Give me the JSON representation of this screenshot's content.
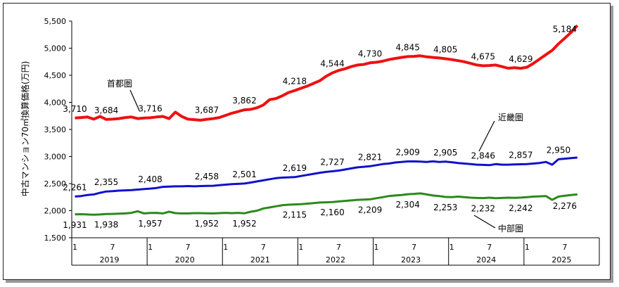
{
  "chart_data": {
    "type": "line",
    "ylabel": "中古マンション70㎡換算価格(万円)",
    "ylim": [
      1500,
      5500
    ],
    "yticks": [
      1500,
      2000,
      2500,
      3000,
      3500,
      4000,
      4500,
      5000,
      5500
    ],
    "ytick_labels": [
      "1,500",
      "2,000",
      "2,500",
      "3,000",
      "3,500",
      "4,000",
      "4,500",
      "5,000",
      "5,500"
    ],
    "x_month_ticks": [
      "1",
      "7",
      "1",
      "7",
      "1",
      "7",
      "1",
      "7",
      "1",
      "7",
      "1",
      "7",
      "1",
      "7"
    ],
    "x_years": [
      "2019",
      "2020",
      "2021",
      "2022",
      "2023",
      "2024",
      "2025"
    ],
    "grid": false,
    "legend": "labels placed next to series",
    "series": [
      {
        "name": "首都圏",
        "color": "#ee1111",
        "values": [
          3710,
          3720,
          3730,
          3690,
          3740,
          3684,
          3690,
          3700,
          3720,
          3730,
          3700,
          3710,
          3716,
          3730,
          3740,
          3700,
          3820,
          3740,
          3690,
          3680,
          3670,
          3687,
          3700,
          3720,
          3760,
          3800,
          3830,
          3862,
          3870,
          3900,
          3950,
          4050,
          4070,
          4120,
          4180,
          4218,
          4260,
          4300,
          4350,
          4400,
          4480,
          4544,
          4590,
          4620,
          4660,
          4690,
          4700,
          4730,
          4740,
          4760,
          4790,
          4810,
          4830,
          4845,
          4850,
          4860,
          4840,
          4830,
          4820,
          4805,
          4790,
          4770,
          4750,
          4720,
          4690,
          4675,
          4680,
          4690,
          4660,
          4630,
          4640,
          4629,
          4650,
          4720,
          4800,
          4880,
          4960,
          5080,
          5184,
          5290,
          5420
        ],
        "labels": [
          {
            "i": 0,
            "text": "3,710"
          },
          {
            "i": 5,
            "text": "3,684"
          },
          {
            "i": 12,
            "text": "3,716"
          },
          {
            "i": 21,
            "text": "3,687"
          },
          {
            "i": 27,
            "text": "3,862"
          },
          {
            "i": 35,
            "text": "4,218"
          },
          {
            "i": 41,
            "text": "4,544"
          },
          {
            "i": 47,
            "text": "4,730"
          },
          {
            "i": 53,
            "text": "4,845"
          },
          {
            "i": 59,
            "text": "4,805"
          },
          {
            "i": 65,
            "text": "4,675"
          },
          {
            "i": 71,
            "text": "4,629"
          },
          {
            "i": 78,
            "text": "5,184"
          }
        ]
      },
      {
        "name": "近畿圏",
        "color": "#1111cc",
        "values": [
          2261,
          2270,
          2290,
          2300,
          2330,
          2355,
          2360,
          2370,
          2375,
          2380,
          2390,
          2400,
          2408,
          2420,
          2440,
          2445,
          2450,
          2450,
          2455,
          2450,
          2455,
          2458,
          2460,
          2470,
          2480,
          2490,
          2495,
          2501,
          2520,
          2540,
          2560,
          2580,
          2600,
          2610,
          2615,
          2619,
          2640,
          2660,
          2680,
          2700,
          2715,
          2727,
          2740,
          2760,
          2780,
          2800,
          2810,
          2821,
          2840,
          2860,
          2870,
          2890,
          2900,
          2909,
          2910,
          2905,
          2900,
          2910,
          2900,
          2905,
          2895,
          2880,
          2870,
          2860,
          2850,
          2846,
          2840,
          2860,
          2850,
          2850,
          2855,
          2857,
          2860,
          2870,
          2880,
          2900,
          2850,
          2950,
          2960,
          2970,
          2980
        ],
        "labels": [
          {
            "i": 0,
            "text": "2,261"
          },
          {
            "i": 5,
            "text": "2,355"
          },
          {
            "i": 12,
            "text": "2,408"
          },
          {
            "i": 21,
            "text": "2,458"
          },
          {
            "i": 27,
            "text": "2,501"
          },
          {
            "i": 35,
            "text": "2,619"
          },
          {
            "i": 41,
            "text": "2,727"
          },
          {
            "i": 47,
            "text": "2,821"
          },
          {
            "i": 53,
            "text": "2,909"
          },
          {
            "i": 59,
            "text": "2,905"
          },
          {
            "i": 65,
            "text": "2,846"
          },
          {
            "i": 71,
            "text": "2,857"
          },
          {
            "i": 77,
            "text": "2,950"
          }
        ]
      },
      {
        "name": "中部圏",
        "color": "#2a8a1a",
        "values": [
          1931,
          1935,
          1930,
          1925,
          1930,
          1938,
          1940,
          1945,
          1950,
          1960,
          1990,
          1950,
          1957,
          1960,
          1950,
          1980,
          1955,
          1950,
          1950,
          1955,
          1955,
          1952,
          1950,
          1955,
          1960,
          1955,
          1960,
          1952,
          1980,
          2000,
          2040,
          2060,
          2080,
          2100,
          2110,
          2115,
          2120,
          2130,
          2140,
          2150,
          2155,
          2160,
          2170,
          2180,
          2190,
          2200,
          2205,
          2209,
          2230,
          2250,
          2270,
          2280,
          2290,
          2304,
          2310,
          2320,
          2300,
          2280,
          2270,
          2253,
          2250,
          2260,
          2250,
          2240,
          2235,
          2232,
          2240,
          2230,
          2235,
          2240,
          2238,
          2242,
          2250,
          2260,
          2265,
          2270,
          2200,
          2260,
          2276,
          2290,
          2300
        ],
        "labels": [
          {
            "i": 0,
            "text": "1,931"
          },
          {
            "i": 5,
            "text": "1,938"
          },
          {
            "i": 12,
            "text": "1,957"
          },
          {
            "i": 21,
            "text": "1,952"
          },
          {
            "i": 27,
            "text": "1,952"
          },
          {
            "i": 35,
            "text": "2,115"
          },
          {
            "i": 41,
            "text": "2,160"
          },
          {
            "i": 47,
            "text": "2,209"
          },
          {
            "i": 53,
            "text": "2,304"
          },
          {
            "i": 59,
            "text": "2,253"
          },
          {
            "i": 65,
            "text": "2,232"
          },
          {
            "i": 71,
            "text": "2,242"
          },
          {
            "i": 78,
            "text": "2,276"
          }
        ]
      }
    ]
  }
}
